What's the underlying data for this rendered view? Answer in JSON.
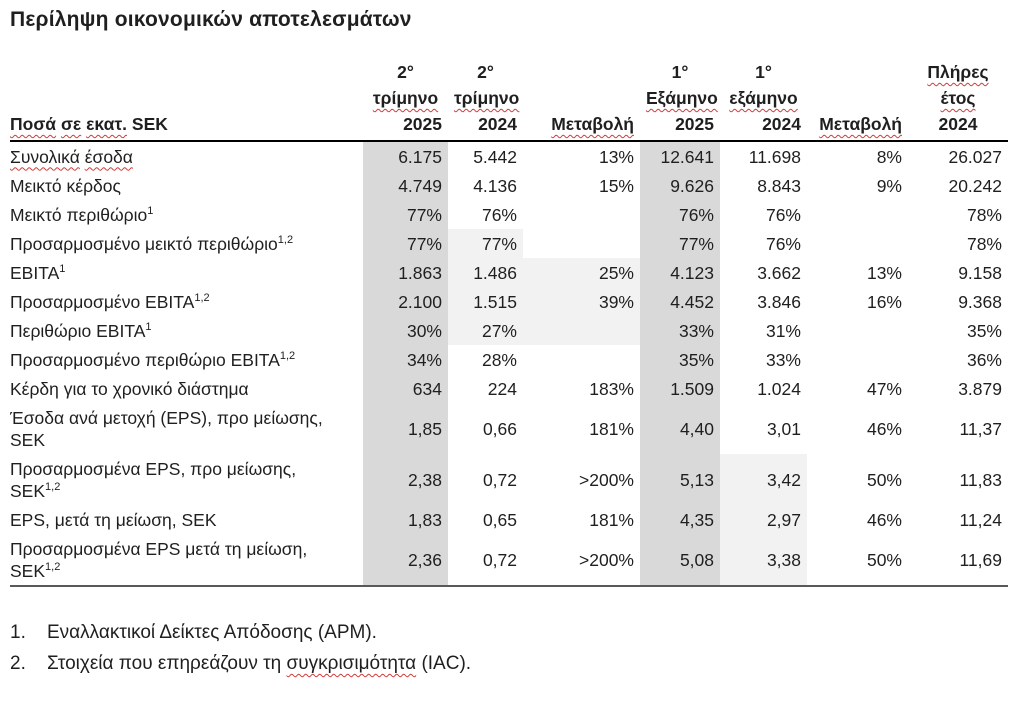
{
  "title": "Περίληψη οικονομικών αποτελεσμάτων",
  "table": {
    "row_header": "Ποσά σε εκατ. SEK",
    "columns": [
      {
        "line1": "2°",
        "line2": "τρίμηνο",
        "line3": "2025"
      },
      {
        "line1": "2°",
        "line2": "τρίμηνο",
        "line3": "2024"
      },
      {
        "line1": "",
        "line2": "",
        "line3": "Μεταβολή"
      },
      {
        "line1": "1°",
        "line2": "Εξάμηνο",
        "line3": "2025"
      },
      {
        "line1": "1°",
        "line2": "εξάμηνο",
        "line3": "2024"
      },
      {
        "line1": "",
        "line2": "",
        "line3": "Μεταβολή"
      },
      {
        "line1": "Πλήρες",
        "line2": "έτος",
        "line3": "2024"
      }
    ],
    "rows": [
      {
        "label": "Συνολικά έσοδα",
        "sup": "",
        "values": [
          "6.175",
          "5.442",
          "13%",
          "12.641",
          "11.698",
          "8%",
          "26.027"
        ]
      },
      {
        "label": "Μεικτό κέρδος",
        "sup": "",
        "values": [
          "4.749",
          "4.136",
          "15%",
          "9.626",
          "8.843",
          "9%",
          "20.242"
        ]
      },
      {
        "label": "Μεικτό περιθώριο",
        "sup": "1",
        "values": [
          "77%",
          "76%",
          "",
          "76%",
          "76%",
          "",
          "78%"
        ]
      },
      {
        "label": "Προσαρμοσμένο μεικτό περιθώριο",
        "sup": "1,2",
        "values": [
          "77%",
          "77%",
          "",
          "77%",
          "76%",
          "",
          "78%"
        ]
      },
      {
        "label": "EBITA",
        "sup": "1",
        "values": [
          "1.863",
          "1.486",
          "25%",
          "4.123",
          "3.662",
          "13%",
          "9.158"
        ]
      },
      {
        "label": "Προσαρμοσμένο EBITA",
        "sup": "1,2",
        "values": [
          "2.100",
          "1.515",
          "39%",
          "4.452",
          "3.846",
          "16%",
          "9.368"
        ]
      },
      {
        "label": "Περιθώριο EBITA",
        "sup": "1",
        "values": [
          "30%",
          "27%",
          "",
          "33%",
          "31%",
          "",
          "35%"
        ]
      },
      {
        "label": "Προσαρμοσμένο περιθώριο EBITA",
        "sup": "1,2",
        "values": [
          "34%",
          "28%",
          "",
          "35%",
          "33%",
          "",
          "36%"
        ]
      },
      {
        "label": "Κέρδη για το χρονικό διάστημα",
        "sup": "",
        "values": [
          "634",
          "224",
          "183%",
          "1.509",
          "1.024",
          "47%",
          "3.879"
        ]
      },
      {
        "label": "Έσοδα ανά μετοχή (EPS), προ μείωσης, SEK",
        "sup": "",
        "values": [
          "1,85",
          "0,66",
          "181%",
          "4,40",
          "3,01",
          "46%",
          "11,37"
        ]
      },
      {
        "label": "Προσαρμοσμένα EPS, προ μείωσης, SEK",
        "sup": "1,2",
        "values": [
          "2,38",
          "0,72",
          ">200%",
          "5,13",
          "3,42",
          "50%",
          "11,83"
        ]
      },
      {
        "label": "EPS, μετά τη μείωση, SEK",
        "sup": "",
        "values": [
          "1,83",
          "0,65",
          "181%",
          "4,35",
          "2,97",
          "46%",
          "11,24"
        ]
      },
      {
        "label": "Προσαρμοσμένα EPS μετά τη μείωση, SEK",
        "sup": "1,2",
        "values": [
          "2,36",
          "0,72",
          ">200%",
          "5,08",
          "3,38",
          "50%",
          "11,69"
        ]
      }
    ]
  },
  "shading": {
    "dark_value_columns": [
      0,
      3
    ],
    "light_cells": {
      "3": [
        1
      ],
      "4": [
        1,
        2
      ],
      "5": [
        1,
        2
      ],
      "6": [
        1,
        2
      ],
      "10": [
        4
      ],
      "11": [
        4
      ],
      "12": [
        4
      ]
    }
  },
  "colors": {
    "column_shade": "#d9d9d9",
    "cell_shade": "#f2f2f2",
    "squiggle_red": "#d03a3a",
    "text": "#1f1f1f"
  },
  "misspelled_words": [
    "Ποσά",
    "σε",
    "εκατ.",
    "τρίμηνο",
    "Εξάμηνο",
    "εξάμηνο",
    "Μεταβολή",
    "Πλήρες",
    "έτος",
    "Συνολικά",
    "έσοδα",
    "συγκρισιμότητα"
  ],
  "footnotes": [
    {
      "number": "1.",
      "text": "Εναλλακτικοί Δείκτες Απόδοσης (APM)."
    },
    {
      "number": "2.",
      "text": "Στοιχεία που επηρεάζουν τη συγκρισιμότητα (IAC)."
    }
  ]
}
